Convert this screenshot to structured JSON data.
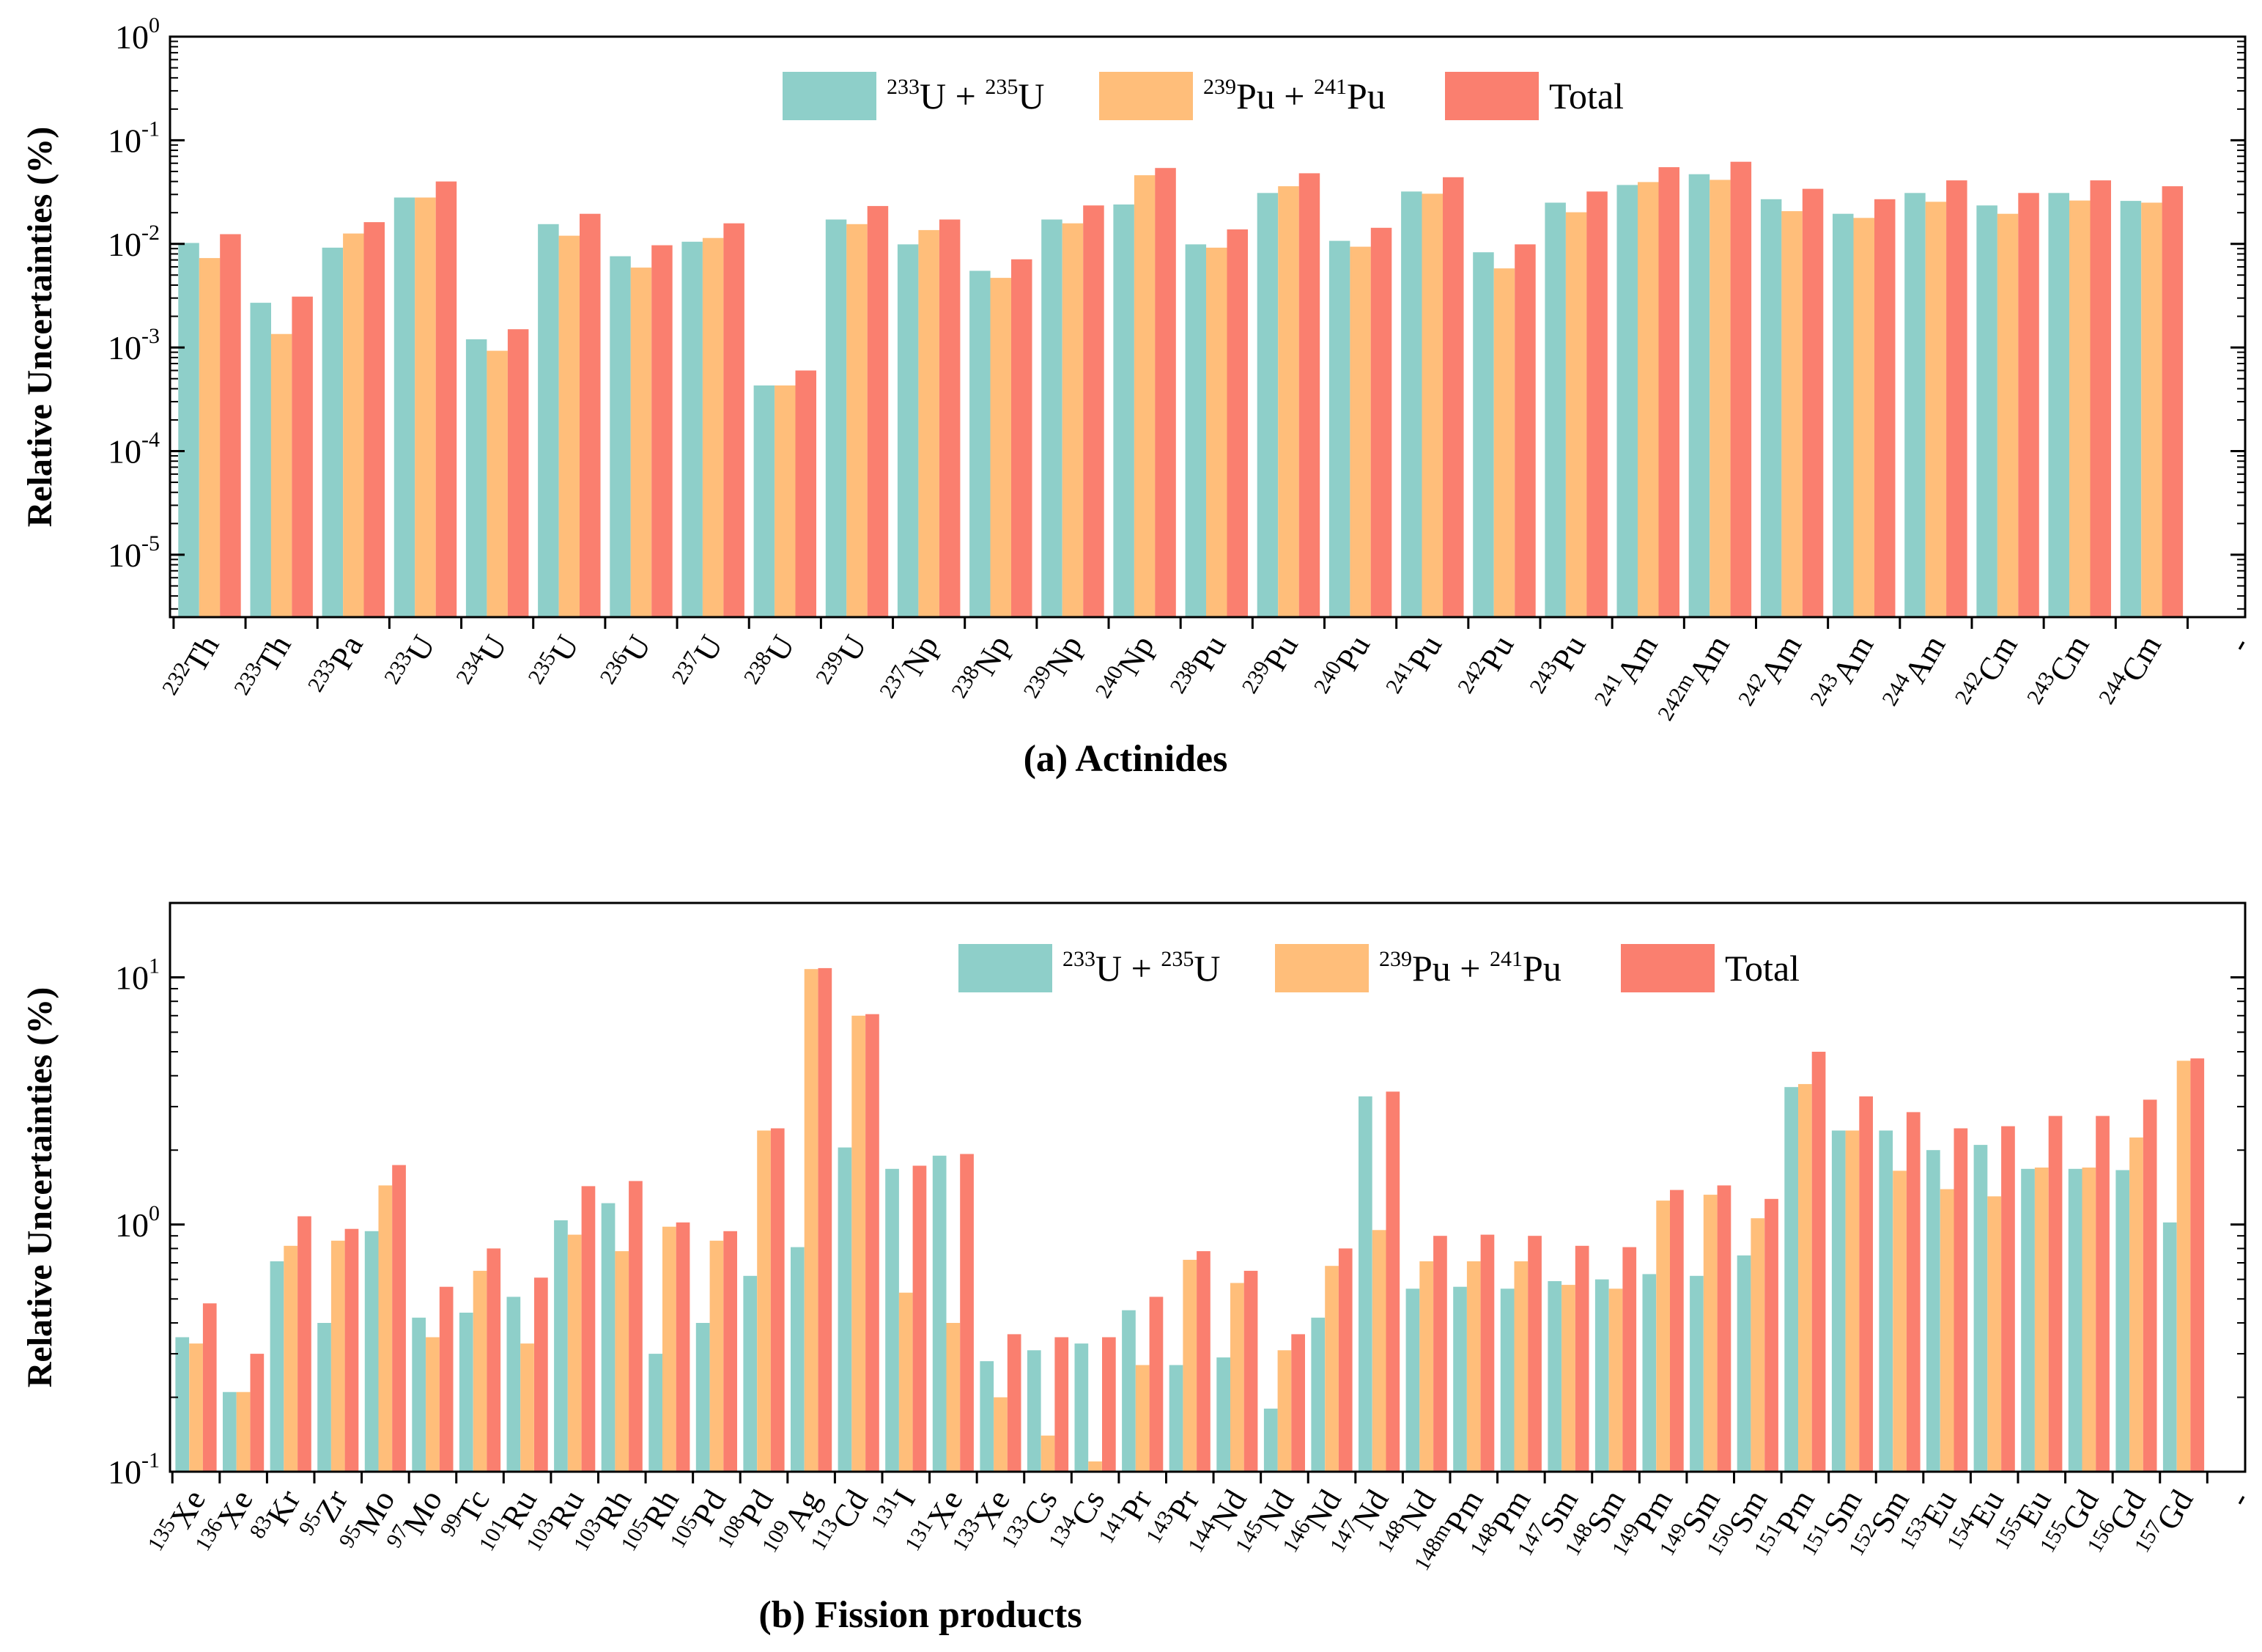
{
  "colors": {
    "s1": "#8ecfc9",
    "s2": "#ffbe7a",
    "s3": "#fa7f6f"
  },
  "chart_data": [
    {
      "type": "bar",
      "scale": "log",
      "caption": "(a) Actinides",
      "ylabel": "Relative Uncertainties (%)",
      "ylim": [
        2.5e-06,
        1
      ],
      "yticks": [
        {
          "base": "10",
          "exp": "-5",
          "value": 1e-05
        },
        {
          "base": "10",
          "exp": "-4",
          "value": 0.0001
        },
        {
          "base": "10",
          "exp": "-3",
          "value": 0.001
        },
        {
          "base": "10",
          "exp": "-2",
          "value": 0.01
        },
        {
          "base": "10",
          "exp": "-1",
          "value": 0.1
        },
        {
          "base": "10",
          "exp": "0",
          "value": 1
        }
      ],
      "legend": [
        {
          "parts": [
            {
              "sup": "233"
            },
            {
              "t": "U + "
            },
            {
              "sup": "235"
            },
            {
              "t": "U"
            }
          ]
        },
        {
          "parts": [
            {
              "sup": "239"
            },
            {
              "t": "Pu + "
            },
            {
              "sup": "241"
            },
            {
              "t": "Pu"
            }
          ]
        },
        {
          "parts": [
            {
              "t": "Total"
            }
          ]
        }
      ],
      "trailing_tick": "-",
      "categories": [
        {
          "mass": "232",
          "el": "Th"
        },
        {
          "mass": "233",
          "el": "Th"
        },
        {
          "mass": "233",
          "el": "Pa"
        },
        {
          "mass": "233",
          "el": "U"
        },
        {
          "mass": "234",
          "el": "U"
        },
        {
          "mass": "235",
          "el": "U"
        },
        {
          "mass": "236",
          "el": "U"
        },
        {
          "mass": "237",
          "el": "U"
        },
        {
          "mass": "238",
          "el": "U"
        },
        {
          "mass": "239",
          "el": "U"
        },
        {
          "mass": "237",
          "el": "Np"
        },
        {
          "mass": "238",
          "el": "Np"
        },
        {
          "mass": "239",
          "el": "Np"
        },
        {
          "mass": "240",
          "el": "Np"
        },
        {
          "mass": "238",
          "el": "Pu"
        },
        {
          "mass": "239",
          "el": "Pu"
        },
        {
          "mass": "240",
          "el": "Pu"
        },
        {
          "mass": "241",
          "el": "Pu"
        },
        {
          "mass": "242",
          "el": "Pu"
        },
        {
          "mass": "243",
          "el": "Pu"
        },
        {
          "mass": "241",
          "el": "Am"
        },
        {
          "mass": "242m",
          "el": "Am"
        },
        {
          "mass": "242",
          "el": "Am"
        },
        {
          "mass": "243",
          "el": "Am"
        },
        {
          "mass": "244",
          "el": "Am"
        },
        {
          "mass": "242",
          "el": "Cm"
        },
        {
          "mass": "243",
          "el": "Cm"
        },
        {
          "mass": "244",
          "el": "Cm"
        }
      ],
      "series": [
        {
          "name": "233U + 235U",
          "values": [
            0.0102,
            0.0027,
            0.0092,
            0.028,
            0.0012,
            0.0155,
            0.0076,
            0.0105,
            0.00043,
            0.0172,
            0.0099,
            0.0055,
            0.0172,
            0.024,
            0.0099,
            0.031,
            0.0107,
            0.032,
            0.0083,
            0.025,
            0.037,
            0.047,
            0.027,
            0.0195,
            0.031,
            0.0235,
            0.031,
            0.026
          ]
        },
        {
          "name": "239Pu + 241Pu",
          "values": [
            0.0073,
            0.00135,
            0.0126,
            0.028,
            0.00093,
            0.012,
            0.0059,
            0.0114,
            0.00043,
            0.0155,
            0.0136,
            0.0047,
            0.0158,
            0.046,
            0.0092,
            0.036,
            0.0094,
            0.0305,
            0.0058,
            0.0202,
            0.0395,
            0.0415,
            0.0207,
            0.0178,
            0.0255,
            0.0195,
            0.0262,
            0.025
          ]
        },
        {
          "name": "Total",
          "values": [
            0.0124,
            0.0031,
            0.0162,
            0.04,
            0.0015,
            0.0195,
            0.0097,
            0.0158,
            0.0006,
            0.0232,
            0.0172,
            0.0071,
            0.0235,
            0.054,
            0.0138,
            0.048,
            0.0143,
            0.044,
            0.0099,
            0.032,
            0.055,
            0.062,
            0.034,
            0.027,
            0.041,
            0.031,
            0.041,
            0.036
          ]
        }
      ]
    },
    {
      "type": "bar",
      "scale": "log",
      "caption": "(b) Fission products",
      "ylabel": "Relative Uncertainties (%)",
      "ylim": [
        0.1,
        20
      ],
      "yticks": [
        {
          "base": "10",
          "exp": "-1",
          "value": 0.1
        },
        {
          "base": "10",
          "exp": "0",
          "value": 1
        },
        {
          "base": "10",
          "exp": "1",
          "value": 10
        }
      ],
      "legend": [
        {
          "parts": [
            {
              "sup": "233"
            },
            {
              "t": "U + "
            },
            {
              "sup": "235"
            },
            {
              "t": "U"
            }
          ]
        },
        {
          "parts": [
            {
              "sup": "239"
            },
            {
              "t": "Pu + "
            },
            {
              "sup": "241"
            },
            {
              "t": "Pu"
            }
          ]
        },
        {
          "parts": [
            {
              "t": "Total"
            }
          ]
        }
      ],
      "trailing_tick": "-",
      "categories": [
        {
          "mass": "135",
          "el": "Xe"
        },
        {
          "mass": "136",
          "el": "Xe"
        },
        {
          "mass": "83",
          "el": "Kr"
        },
        {
          "mass": "95",
          "el": "Zr"
        },
        {
          "mass": "95",
          "el": "Mo"
        },
        {
          "mass": "97",
          "el": "Mo"
        },
        {
          "mass": "99",
          "el": "Tc"
        },
        {
          "mass": "101",
          "el": "Ru"
        },
        {
          "mass": "103",
          "el": "Ru"
        },
        {
          "mass": "103",
          "el": "Rh"
        },
        {
          "mass": "105",
          "el": "Rh"
        },
        {
          "mass": "105",
          "el": "Pd"
        },
        {
          "mass": "108",
          "el": "Pd"
        },
        {
          "mass": "109",
          "el": "Ag"
        },
        {
          "mass": "113",
          "el": "Cd"
        },
        {
          "mass": "131",
          "el": "I"
        },
        {
          "mass": "131",
          "el": "Xe"
        },
        {
          "mass": "133",
          "el": "Xe"
        },
        {
          "mass": "133",
          "el": "Cs"
        },
        {
          "mass": "134",
          "el": "Cs"
        },
        {
          "mass": "141",
          "el": "Pr"
        },
        {
          "mass": "143",
          "el": "Pr"
        },
        {
          "mass": "144",
          "el": "Nd"
        },
        {
          "mass": "145",
          "el": "Nd"
        },
        {
          "mass": "146",
          "el": "Nd"
        },
        {
          "mass": "147",
          "el": "Nd"
        },
        {
          "mass": "148",
          "el": "Nd"
        },
        {
          "mass": "148m",
          "el": "Pm"
        },
        {
          "mass": "148",
          "el": "Pm"
        },
        {
          "mass": "147",
          "el": "Sm"
        },
        {
          "mass": "148",
          "el": "Sm"
        },
        {
          "mass": "149",
          "el": "Pm"
        },
        {
          "mass": "149",
          "el": "Sm"
        },
        {
          "mass": "150",
          "el": "Sm"
        },
        {
          "mass": "151",
          "el": "Pm"
        },
        {
          "mass": "151",
          "el": "Sm"
        },
        {
          "mass": "152",
          "el": "Sm"
        },
        {
          "mass": "153",
          "el": "Eu"
        },
        {
          "mass": "154",
          "el": "Eu"
        },
        {
          "mass": "155",
          "el": "Eu"
        },
        {
          "mass": "155",
          "el": "Gd"
        },
        {
          "mass": "156",
          "el": "Gd"
        },
        {
          "mass": "157",
          "el": "Gd"
        }
      ],
      "series": [
        {
          "name": "233U + 235U",
          "values": [
            0.35,
            0.21,
            0.71,
            0.4,
            0.94,
            0.42,
            0.44,
            0.51,
            1.04,
            1.22,
            0.3,
            0.4,
            0.62,
            0.81,
            2.05,
            1.68,
            1.9,
            0.28,
            0.31,
            0.33,
            0.45,
            0.27,
            0.29,
            0.18,
            0.42,
            3.3,
            0.55,
            0.56,
            0.55,
            0.59,
            0.6,
            0.63,
            0.62,
            0.75,
            3.6,
            2.4,
            2.4,
            2.0,
            2.1,
            1.68,
            1.68,
            1.66,
            1.02
          ]
        },
        {
          "name": "239Pu + 241Pu",
          "values": [
            0.33,
            0.21,
            0.82,
            0.86,
            1.44,
            0.35,
            0.65,
            0.33,
            0.91,
            0.78,
            0.98,
            0.86,
            2.4,
            10.8,
            7.0,
            0.53,
            0.4,
            0.2,
            0.14,
            0.11,
            0.27,
            0.72,
            0.58,
            0.31,
            0.68,
            0.95,
            0.71,
            0.71,
            0.71,
            0.57,
            0.55,
            1.25,
            1.32,
            1.06,
            3.7,
            2.4,
            1.65,
            1.39,
            1.3,
            1.7,
            1.7,
            2.25,
            4.6
          ]
        },
        {
          "name": "Total",
          "values": [
            0.48,
            0.3,
            1.08,
            0.96,
            1.74,
            0.56,
            0.8,
            0.61,
            1.43,
            1.5,
            1.02,
            0.94,
            2.45,
            10.9,
            7.1,
            1.73,
            1.93,
            0.36,
            0.35,
            0.35,
            0.51,
            0.78,
            0.65,
            0.36,
            0.8,
            3.45,
            0.9,
            0.91,
            0.9,
            0.82,
            0.81,
            1.38,
            1.44,
            1.27,
            5.0,
            3.3,
            2.85,
            2.45,
            2.5,
            2.75,
            2.75,
            3.2,
            4.7
          ]
        }
      ]
    }
  ]
}
